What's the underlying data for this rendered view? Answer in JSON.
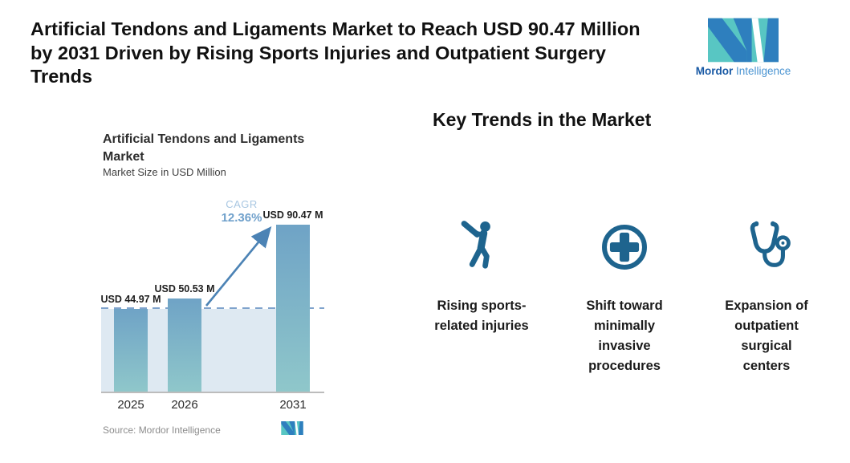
{
  "header": {
    "title_lines": [
      "Artificial Tendons and Ligaments Market to Reach USD 90.47 Million",
      "by 2031 Driven by Rising Sports Injuries and Outpatient Surgery",
      "Trends"
    ]
  },
  "brand": {
    "name_primary": "Mordor",
    "name_secondary": "Intelligence"
  },
  "chart_data": {
    "type": "bar",
    "title": "Artificial Tendons and Ligaments Market",
    "subtitle": "Market Size in USD Million",
    "categories": [
      "2025",
      "2026",
      "2031"
    ],
    "values": [
      44.97,
      50.53,
      90.47
    ],
    "bar_labels": [
      "USD 44.97 M",
      "USD 50.53 M",
      "USD 90.47 M"
    ],
    "cagr_label": "CAGR",
    "cagr_value": "12.36%",
    "reference_line_value": 44.97,
    "ylim": [
      0,
      100
    ],
    "grid": false,
    "legend": "none",
    "source": "Source: Mordor Intelligence",
    "colors": {
      "bar_gradient_top": "#6FA3C6",
      "bar_gradient_bottom": "#8FC7CA",
      "band": "#DEE9F2",
      "dashed_line": "#7FA3CC",
      "arrow": "#4C83B5",
      "cagr_label": "#A9C7E2",
      "cagr_value": "#6FA0CB"
    }
  },
  "key_trends": {
    "heading": "Key Trends in the Market",
    "items": [
      {
        "icon": "baseball-player-icon",
        "label": "Rising sports-related injuries"
      },
      {
        "icon": "medical-cross-icon",
        "label": "Shift toward minimally invasive procedures"
      },
      {
        "icon": "stethoscope-icon",
        "label": "Expansion of outpatient surgical centers"
      }
    ]
  },
  "colors": {
    "trend_icon": "#1E648E",
    "logo_teal": "#58C6C3",
    "logo_blue": "#2E7FBE",
    "brand_text_primary": "#1859A4",
    "brand_text_secondary": "#4A94D2"
  }
}
